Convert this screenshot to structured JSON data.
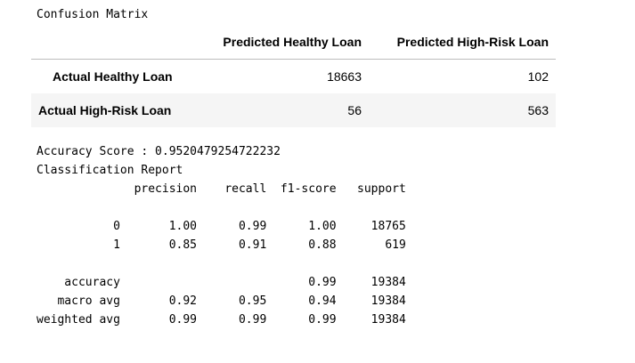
{
  "confusion": {
    "title": "Confusion Matrix",
    "columns": [
      "Predicted Healthy Loan",
      "Predicted High-Risk Loan"
    ],
    "rows": [
      {
        "label": "Actual Healthy Loan",
        "values": [
          "18663",
          "102"
        ]
      },
      {
        "label": "Actual High-Risk Loan",
        "values": [
          "56",
          "563"
        ]
      }
    ]
  },
  "report": {
    "accuracy_line": "Accuracy Score : 0.9520479254722232",
    "title": "Classification Report",
    "lines": [
      "              precision    recall  f1-score   support",
      "",
      "           0       1.00      0.99      1.00     18765",
      "           1       0.85      0.91      0.88       619",
      "",
      "    accuracy                           0.99     19384",
      "   macro avg       0.92      0.95      0.94     19384",
      "weighted avg       0.99      0.99      0.99     19384"
    ]
  }
}
